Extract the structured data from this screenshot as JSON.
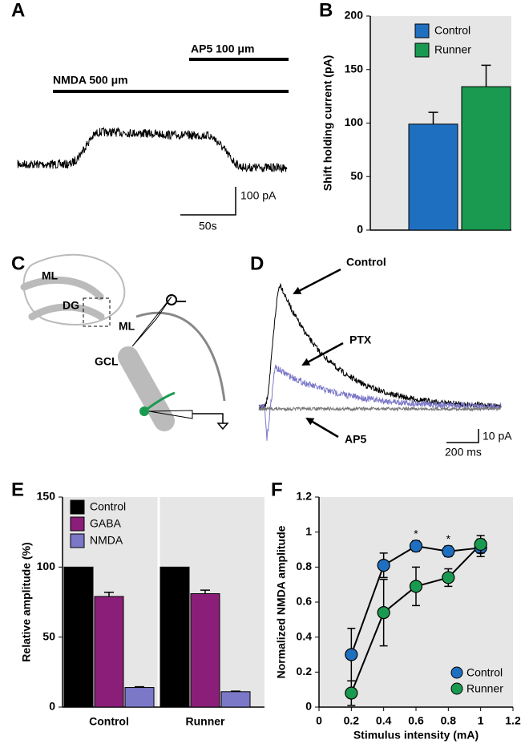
{
  "panel_labels": [
    "A",
    "B",
    "C",
    "D",
    "E",
    "F"
  ],
  "panel_a": {
    "labels": [
      "AP5 100 μm",
      "NMDA 500 μm"
    ],
    "scale_y": "100 pA",
    "scale_x": "50s"
  },
  "panel_c": {
    "labels": [
      "ML",
      "DG",
      "ML",
      "GCL"
    ]
  },
  "panel_d": {
    "labels": [
      "Control",
      "PTX",
      "AP5"
    ],
    "scale_y": "10 pA",
    "scale_x": "200 ms"
  },
  "chart_data": [
    {
      "type": "bar",
      "ylabel": "Shift holding current (pA)",
      "categories": [
        null
      ],
      "series": [
        {
          "name": "Control",
          "color": "#1f6fc0",
          "values": [
            99
          ],
          "errors": [
            11
          ]
        },
        {
          "name": "Runner",
          "color": "#1a9a50",
          "values": [
            134
          ],
          "errors": [
            20
          ]
        }
      ],
      "ylim": [
        0,
        200
      ],
      "yticks": [
        0,
        50,
        100,
        150,
        200
      ],
      "background": "#e6e6e6",
      "legend": "upper left"
    },
    {
      "type": "bar",
      "ylabel": "Relative amplitude (%)",
      "categories": [
        "Control",
        "Runner"
      ],
      "series": [
        {
          "name": "Control",
          "color": "#000000",
          "values": [
            100,
            100
          ]
        },
        {
          "name": "GABA",
          "color": "#8b1e78",
          "values": [
            79,
            81
          ],
          "errors": [
            3,
            2.5
          ]
        },
        {
          "name": "NMDA",
          "color": "#7b78c8",
          "values": [
            14,
            11
          ],
          "errors": [
            0.5,
            0.4
          ]
        }
      ],
      "ylim": [
        0,
        150
      ],
      "yticks": [
        0,
        50,
        100,
        150
      ],
      "background": "#e6e6e6",
      "legend": "upper left"
    },
    {
      "type": "line",
      "xlabel": "Stimulus intensity (mA)",
      "ylabel": "Normalized NMDA amplitude",
      "x": [
        0.2,
        0.4,
        0.6,
        0.8,
        1
      ],
      "series": [
        {
          "name": "Control",
          "color": "#1f6fc0",
          "values": [
            0.3,
            0.81,
            0.92,
            0.89,
            0.91
          ],
          "errors": [
            0.15,
            0.07,
            0.03,
            0.03,
            0.05
          ]
        },
        {
          "name": "Runner",
          "color": "#1a9a50",
          "values": [
            0.08,
            0.54,
            0.69,
            0.74,
            0.93
          ],
          "errors": [
            0.07,
            0.19,
            0.11,
            0.05,
            0.05
          ]
        }
      ],
      "xlim": [
        0,
        1.2
      ],
      "xticks": [
        0,
        0.2,
        0.4,
        0.6,
        0.8,
        1,
        1.2
      ],
      "ylim": [
        0,
        1.2
      ],
      "yticks": [
        0,
        0.2,
        0.4,
        0.6,
        0.8,
        1,
        1.2
      ],
      "annotations": [
        {
          "text": "*",
          "x": 0.6
        },
        {
          "text": "*",
          "x": 0.8
        }
      ],
      "background": "#e6e6e6",
      "legend": "lower right"
    }
  ]
}
